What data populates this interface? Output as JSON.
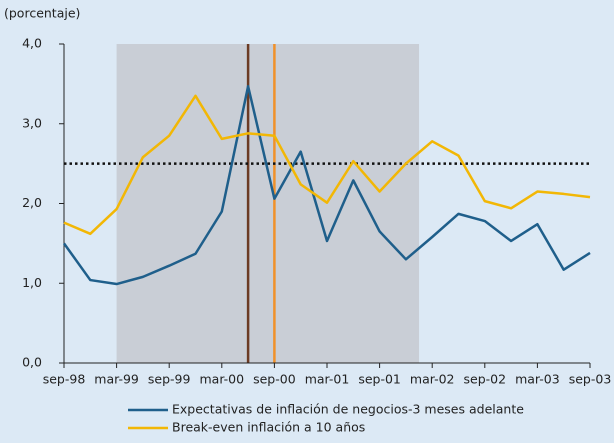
{
  "chart_data": {
    "type": "line",
    "ylabel": "(porcentaje)",
    "categories": [
      "sep-98",
      null,
      "mar-99",
      null,
      "sep-99",
      null,
      "mar-00",
      null,
      "sep-00",
      null,
      "mar-01",
      null,
      "sep-01",
      null,
      "mar-02",
      null,
      "sep-02",
      null,
      "mar-03",
      null,
      "sep-03"
    ],
    "series": [
      {
        "name": "Expectativas de inflación de negocios-3 meses adelante",
        "color": "#1f5f8b",
        "values": [
          1.5,
          1.04,
          0.99,
          1.08,
          1.22,
          1.37,
          1.9,
          3.47,
          2.06,
          2.65,
          1.53,
          2.29,
          1.65,
          1.3,
          1.58,
          1.87,
          1.78,
          1.53,
          1.74,
          1.17,
          1.38
        ]
      },
      {
        "name": "Break-even inflación a 10 años",
        "color": "#f2b705",
        "values": [
          1.76,
          1.62,
          1.93,
          2.58,
          2.85,
          3.35,
          2.81,
          2.88,
          2.85,
          2.24,
          2.01,
          2.53,
          2.15,
          2.5,
          2.78,
          2.6,
          2.03,
          1.94,
          2.15,
          2.12,
          2.08
        ]
      }
    ],
    "ylim": [
      0,
      4
    ],
    "yticks": [
      {
        "value": 0,
        "label": "0,0"
      },
      {
        "value": 1,
        "label": "1,0"
      },
      {
        "value": 2,
        "label": "2,0"
      },
      {
        "value": 3,
        "label": "3,0"
      },
      {
        "value": 4,
        "label": "4,0"
      }
    ],
    "hline": 2.5,
    "shaded_span": [
      2,
      13.5
    ],
    "vlines": [
      {
        "x": 7,
        "color": "#6b3b24"
      },
      {
        "x": 8,
        "color": "#f0912a"
      }
    ],
    "shade_color": "#c9ced6"
  }
}
